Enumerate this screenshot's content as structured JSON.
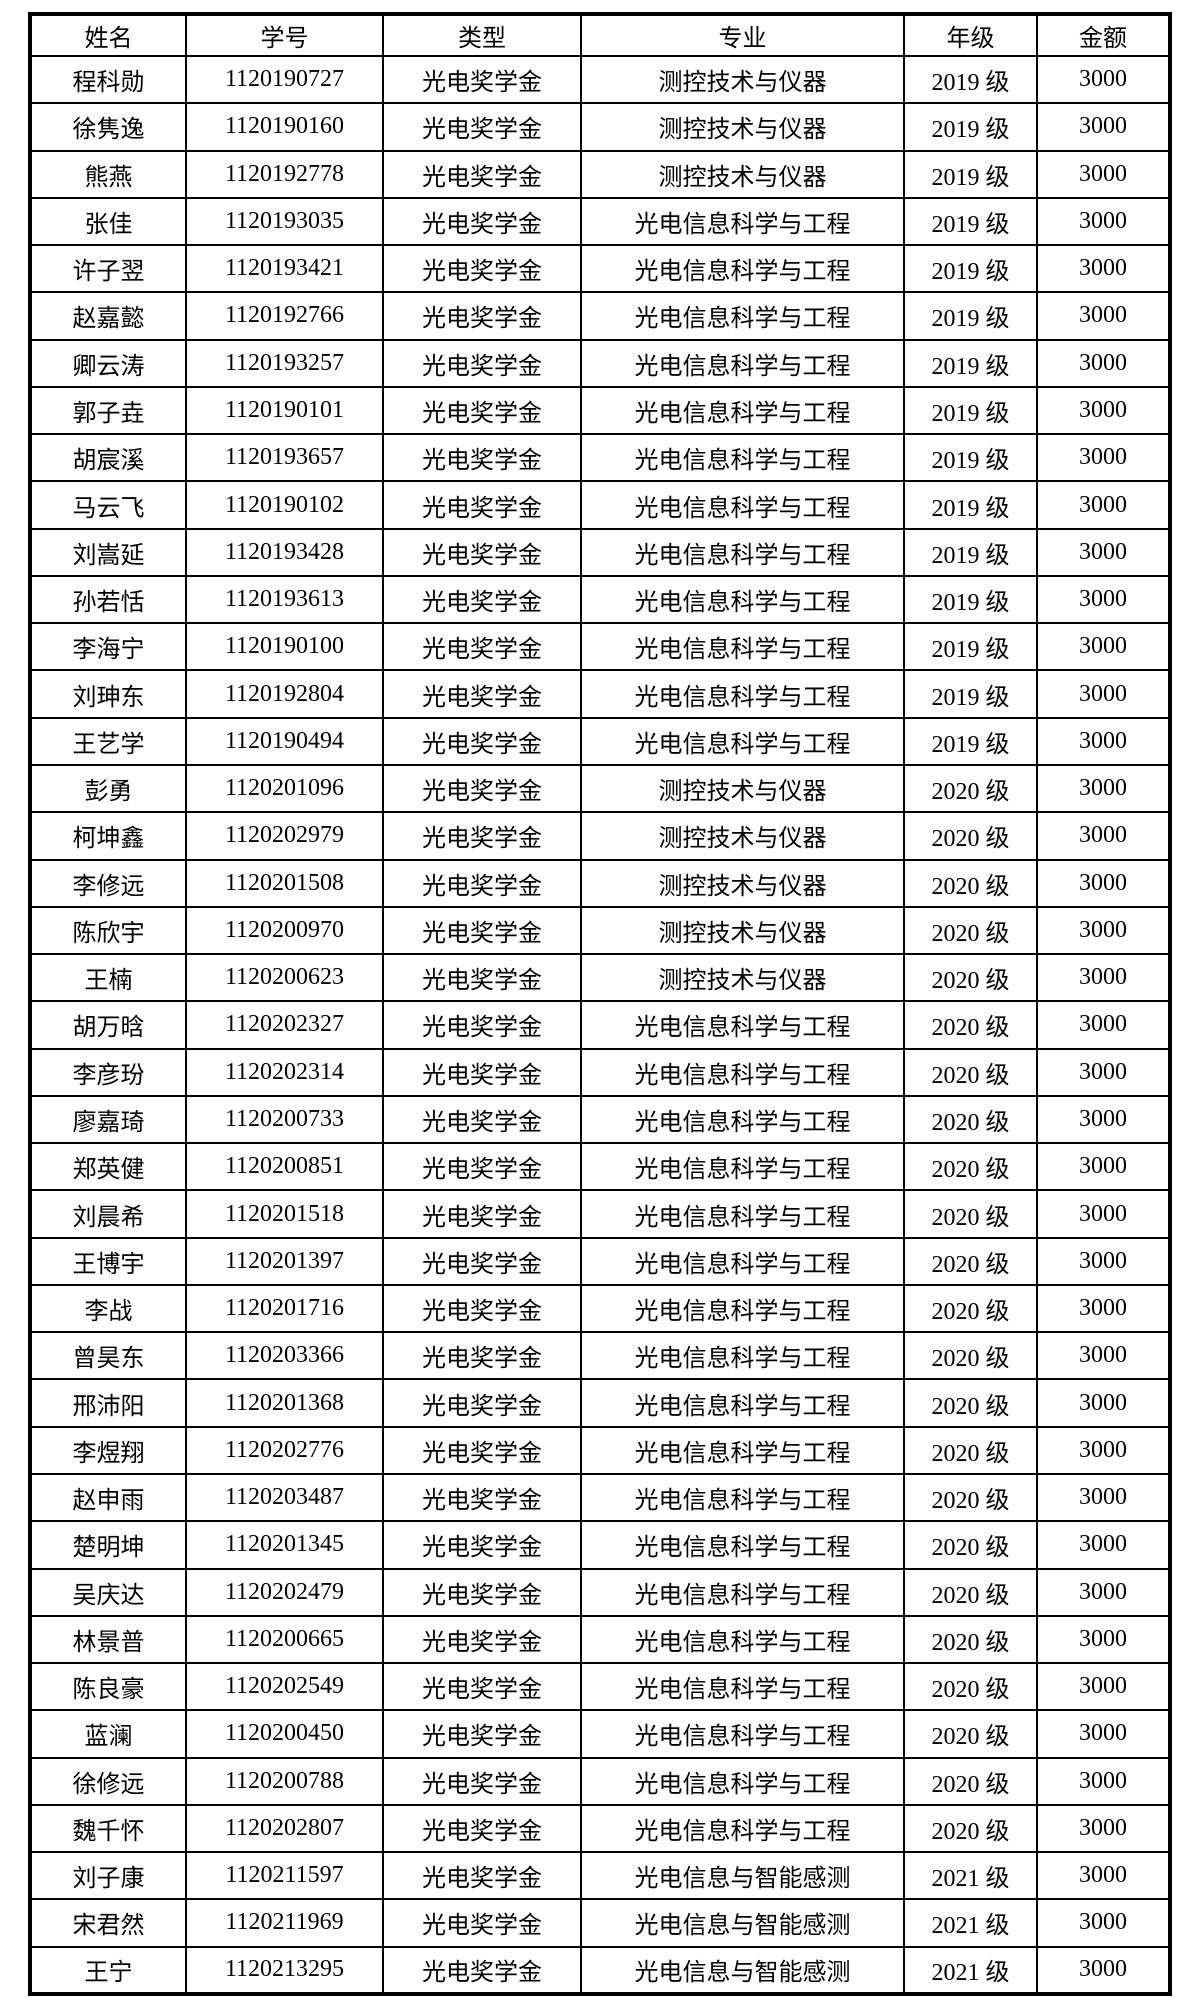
{
  "table": {
    "headers": [
      "姓名",
      "学号",
      "类型",
      "专业",
      "年级",
      "金额"
    ],
    "rows": [
      [
        "程科勋",
        "1120190727",
        "光电奖学金",
        "测控技术与仪器",
        "2019 级",
        "3000"
      ],
      [
        "徐隽逸",
        "1120190160",
        "光电奖学金",
        "测控技术与仪器",
        "2019 级",
        "3000"
      ],
      [
        "熊燕",
        "1120192778",
        "光电奖学金",
        "测控技术与仪器",
        "2019 级",
        "3000"
      ],
      [
        "张佳",
        "1120193035",
        "光电奖学金",
        "光电信息科学与工程",
        "2019 级",
        "3000"
      ],
      [
        "许子翌",
        "1120193421",
        "光电奖学金",
        "光电信息科学与工程",
        "2019 级",
        "3000"
      ],
      [
        "赵嘉懿",
        "1120192766",
        "光电奖学金",
        "光电信息科学与工程",
        "2019 级",
        "3000"
      ],
      [
        "卿云涛",
        "1120193257",
        "光电奖学金",
        "光电信息科学与工程",
        "2019 级",
        "3000"
      ],
      [
        "郭子垚",
        "1120190101",
        "光电奖学金",
        "光电信息科学与工程",
        "2019 级",
        "3000"
      ],
      [
        "胡宸溪",
        "1120193657",
        "光电奖学金",
        "光电信息科学与工程",
        "2019 级",
        "3000"
      ],
      [
        "马云飞",
        "1120190102",
        "光电奖学金",
        "光电信息科学与工程",
        "2019 级",
        "3000"
      ],
      [
        "刘嵩延",
        "1120193428",
        "光电奖学金",
        "光电信息科学与工程",
        "2019 级",
        "3000"
      ],
      [
        "孙若恬",
        "1120193613",
        "光电奖学金",
        "光电信息科学与工程",
        "2019 级",
        "3000"
      ],
      [
        "李海宁",
        "1120190100",
        "光电奖学金",
        "光电信息科学与工程",
        "2019 级",
        "3000"
      ],
      [
        "刘珅东",
        "1120192804",
        "光电奖学金",
        "光电信息科学与工程",
        "2019 级",
        "3000"
      ],
      [
        "王艺学",
        "1120190494",
        "光电奖学金",
        "光电信息科学与工程",
        "2019 级",
        "3000"
      ],
      [
        "彭勇",
        "1120201096",
        "光电奖学金",
        "测控技术与仪器",
        "2020 级",
        "3000"
      ],
      [
        "柯坤鑫",
        "1120202979",
        "光电奖学金",
        "测控技术与仪器",
        "2020 级",
        "3000"
      ],
      [
        "李修远",
        "1120201508",
        "光电奖学金",
        "测控技术与仪器",
        "2020 级",
        "3000"
      ],
      [
        "陈欣宇",
        "1120200970",
        "光电奖学金",
        "测控技术与仪器",
        "2020 级",
        "3000"
      ],
      [
        "王楠",
        "1120200623",
        "光电奖学金",
        "测控技术与仪器",
        "2020 级",
        "3000"
      ],
      [
        "胡万晗",
        "1120202327",
        "光电奖学金",
        "光电信息科学与工程",
        "2020 级",
        "3000"
      ],
      [
        "李彦玢",
        "1120202314",
        "光电奖学金",
        "光电信息科学与工程",
        "2020 级",
        "3000"
      ],
      [
        "廖嘉琦",
        "1120200733",
        "光电奖学金",
        "光电信息科学与工程",
        "2020 级",
        "3000"
      ],
      [
        "郑英健",
        "1120200851",
        "光电奖学金",
        "光电信息科学与工程",
        "2020 级",
        "3000"
      ],
      [
        "刘晨希",
        "1120201518",
        "光电奖学金",
        "光电信息科学与工程",
        "2020 级",
        "3000"
      ],
      [
        "王博宇",
        "1120201397",
        "光电奖学金",
        "光电信息科学与工程",
        "2020 级",
        "3000"
      ],
      [
        "李战",
        "1120201716",
        "光电奖学金",
        "光电信息科学与工程",
        "2020 级",
        "3000"
      ],
      [
        "曾昊东",
        "1120203366",
        "光电奖学金",
        "光电信息科学与工程",
        "2020 级",
        "3000"
      ],
      [
        "邢沛阳",
        "1120201368",
        "光电奖学金",
        "光电信息科学与工程",
        "2020 级",
        "3000"
      ],
      [
        "李煜翔",
        "1120202776",
        "光电奖学金",
        "光电信息科学与工程",
        "2020 级",
        "3000"
      ],
      [
        "赵申雨",
        "1120203487",
        "光电奖学金",
        "光电信息科学与工程",
        "2020 级",
        "3000"
      ],
      [
        "楚明坤",
        "1120201345",
        "光电奖学金",
        "光电信息科学与工程",
        "2020 级",
        "3000"
      ],
      [
        "吴庆达",
        "1120202479",
        "光电奖学金",
        "光电信息科学与工程",
        "2020 级",
        "3000"
      ],
      [
        "林景普",
        "1120200665",
        "光电奖学金",
        "光电信息科学与工程",
        "2020 级",
        "3000"
      ],
      [
        "陈良豪",
        "1120202549",
        "光电奖学金",
        "光电信息科学与工程",
        "2020 级",
        "3000"
      ],
      [
        "蓝澜",
        "1120200450",
        "光电奖学金",
        "光电信息科学与工程",
        "2020 级",
        "3000"
      ],
      [
        "徐修远",
        "1120200788",
        "光电奖学金",
        "光电信息科学与工程",
        "2020 级",
        "3000"
      ],
      [
        "魏千怀",
        "1120202807",
        "光电奖学金",
        "光电信息科学与工程",
        "2020 级",
        "3000"
      ],
      [
        "刘子康",
        "1120211597",
        "光电奖学金",
        "光电信息与智能感测",
        "2021 级",
        "3000"
      ],
      [
        "宋君然",
        "1120211969",
        "光电奖学金",
        "光电信息与智能感测",
        "2021 级",
        "3000"
      ],
      [
        "王宁",
        "1120213295",
        "光电奖学金",
        "光电信息与智能感测",
        "2021 级",
        "3000"
      ]
    ]
  }
}
